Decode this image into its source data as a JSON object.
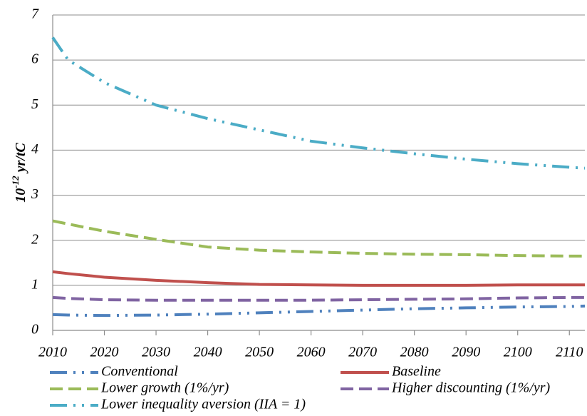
{
  "chart_data": {
    "type": "line",
    "y_label": {
      "base": "10",
      "exponent": "-12",
      "unit": "yr/tC"
    },
    "x": [
      2010,
      2013,
      2020,
      2030,
      2040,
      2050,
      2060,
      2070,
      2080,
      2090,
      2100,
      2110,
      2113
    ],
    "xlim": [
      2010,
      2113
    ],
    "xticks": [
      2010,
      2020,
      2030,
      2040,
      2050,
      2060,
      2070,
      2080,
      2090,
      2100,
      2110
    ],
    "ylim": [
      0,
      7
    ],
    "yticks": [
      0,
      1,
      2,
      3,
      4,
      5,
      6,
      7
    ],
    "grid": true,
    "legend": "bottom",
    "series": [
      {
        "name": "Conventional",
        "color": "#4f81bd",
        "dash": "dash-dot-dot",
        "values": [
          0.35,
          0.34,
          0.33,
          0.34,
          0.36,
          0.39,
          0.42,
          0.45,
          0.48,
          0.5,
          0.52,
          0.53,
          0.54
        ]
      },
      {
        "name": "Baseline",
        "color": "#c0504d",
        "dash": "solid",
        "values": [
          1.3,
          1.26,
          1.18,
          1.11,
          1.06,
          1.02,
          1.01,
          1.0,
          1.0,
          1.0,
          1.01,
          1.01,
          1.01
        ]
      },
      {
        "name": "Lower growth (1%/yr)",
        "color": "#9bbb59",
        "dash": "dash",
        "values": [
          2.43,
          2.36,
          2.2,
          2.02,
          1.85,
          1.78,
          1.74,
          1.71,
          1.69,
          1.68,
          1.66,
          1.65,
          1.65
        ]
      },
      {
        "name": "Higher discounting (1%/yr)",
        "color": "#8064a2",
        "dash": "dash",
        "values": [
          0.73,
          0.71,
          0.68,
          0.67,
          0.67,
          0.67,
          0.67,
          0.68,
          0.69,
          0.7,
          0.72,
          0.73,
          0.73
        ]
      },
      {
        "name": "Lower inequality aversion (IIA = 1)",
        "color": "#4bacc6",
        "dash": "dash-dot-dot",
        "values": [
          6.5,
          6.0,
          5.5,
          5.0,
          4.7,
          4.45,
          4.2,
          4.05,
          3.92,
          3.8,
          3.7,
          3.62,
          3.6
        ]
      }
    ]
  }
}
